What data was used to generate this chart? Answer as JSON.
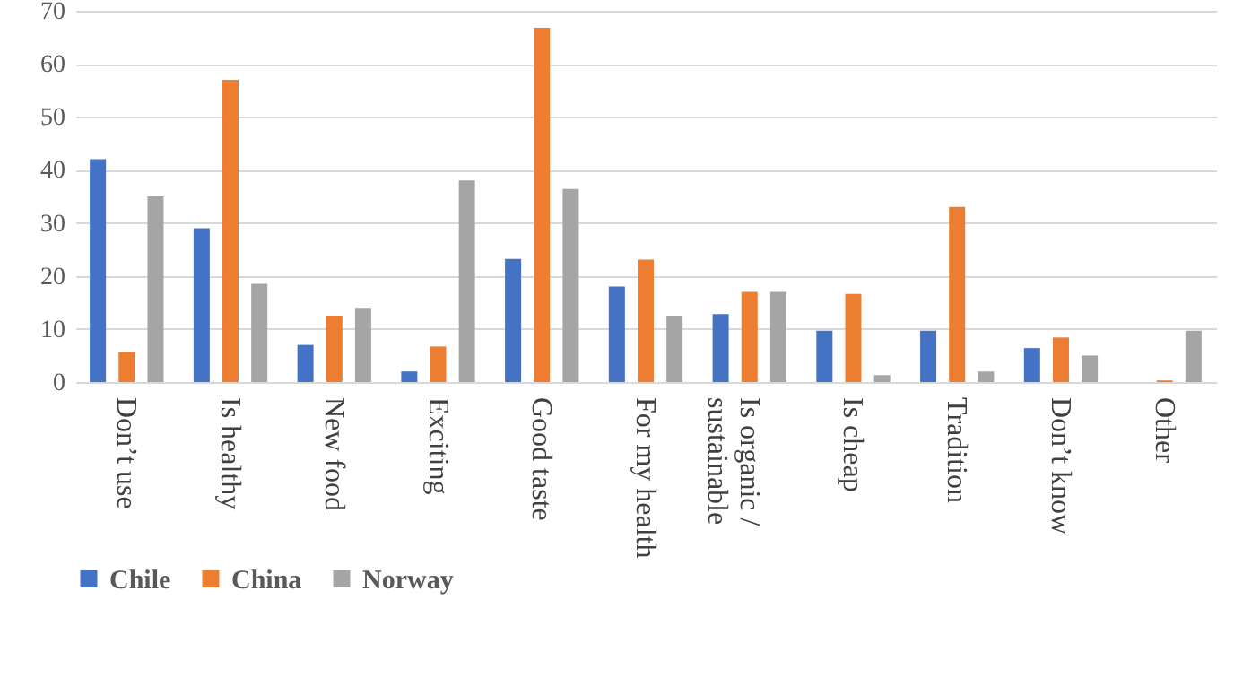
{
  "chart_data": {
    "type": "bar",
    "categories": [
      "Don’t use",
      "Is healthy",
      "New food",
      "Exciting",
      "Good taste",
      "For my health",
      "Is organic / sustainable",
      "Is cheap",
      "Tradition",
      "Don’t know",
      "Other"
    ],
    "series": [
      {
        "name": "Chile",
        "color": "#4472c4",
        "values": [
          42,
          29,
          7,
          2,
          23.2,
          18,
          12.8,
          9.7,
          9.7,
          6.4,
          null
        ]
      },
      {
        "name": "China",
        "color": "#ed7d31",
        "values": [
          5.7,
          57,
          12.5,
          6.7,
          66.8,
          23.1,
          17,
          16.6,
          33,
          8.4,
          0.3
        ]
      },
      {
        "name": "Norway",
        "color": "#a5a5a5",
        "values": [
          35,
          18.5,
          14,
          38,
          36.4,
          12.5,
          17,
          1.3,
          2,
          5,
          9.7
        ]
      }
    ],
    "ylim": [
      0,
      70
    ],
    "yticks": [
      0,
      10,
      20,
      30,
      40,
      50,
      60,
      70
    ],
    "grid": "y",
    "legend": "bottom"
  }
}
